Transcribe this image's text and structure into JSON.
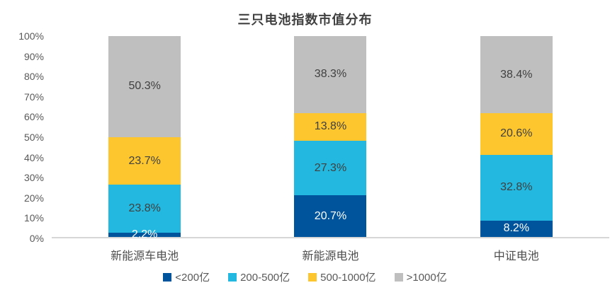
{
  "chart_data": {
    "type": "bar",
    "subtype": "stacked-100-percent-column",
    "title": "三只电池指数市值分布",
    "categories": [
      "新能源车电池",
      "新能源电池",
      "中证电池"
    ],
    "series": [
      {
        "name": "<200亿",
        "color": "#00549b",
        "label_color": "#ffffff",
        "values": [
          2.2,
          20.7,
          8.2
        ]
      },
      {
        "name": "200-500亿",
        "color": "#22b8df",
        "label_color": "#404040",
        "values": [
          23.8,
          27.3,
          32.8
        ]
      },
      {
        "name": "500-1000亿",
        "color": "#fdc62f",
        "label_color": "#404040",
        "values": [
          23.7,
          13.8,
          20.6
        ]
      },
      {
        "name": ">1000亿",
        "color": "#bfbfbf",
        "label_color": "#404040",
        "values": [
          50.3,
          38.3,
          38.4
        ]
      }
    ],
    "y_ticks": [
      "0%",
      "10%",
      "20%",
      "30%",
      "40%",
      "50%",
      "60%",
      "70%",
      "80%",
      "90%",
      "100%"
    ],
    "ylim": [
      0,
      100
    ],
    "grid": false,
    "legend_position": "bottom",
    "axis_line_color": "#d6d6d6",
    "tick_label_color": "#595959",
    "data_label_suffix": "%"
  }
}
